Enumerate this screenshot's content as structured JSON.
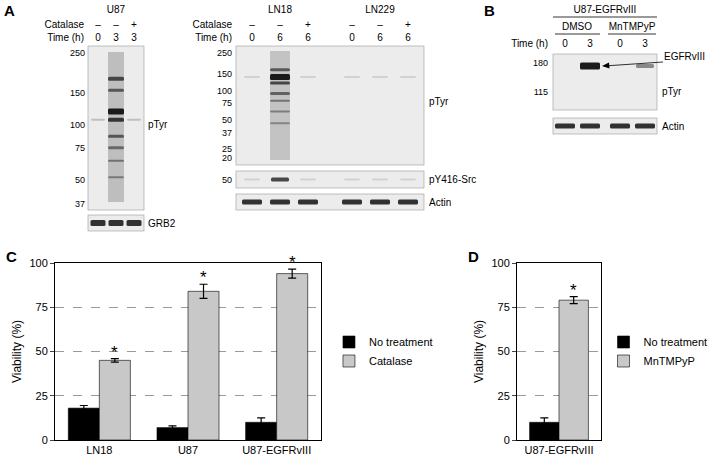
{
  "blots": {
    "panel_a_u87": {
      "panel_label": "A",
      "cell_line": "U87",
      "catalase_label": "Catalase",
      "catalase": [
        "–",
        "–",
        "+"
      ],
      "time_label": "Time (h)",
      "time": [
        "0",
        "3",
        "3"
      ],
      "pTyr": {
        "label": "pTyr",
        "markers": [
          250,
          150,
          100,
          75,
          50,
          37
        ]
      },
      "loading": "GRB2"
    },
    "panel_a_ln": {
      "cell_lines": [
        "LN18",
        "LN229"
      ],
      "catalase_label": "Catalase",
      "catalase": [
        "–",
        "–",
        "+",
        "–",
        "–",
        "+"
      ],
      "time_label": "Time (h)",
      "time": [
        "0",
        "6",
        "6",
        "0",
        "6",
        "6"
      ],
      "pTyr": {
        "label": "pTyr",
        "markers": [
          250,
          150,
          100,
          75,
          50,
          37,
          25,
          20
        ]
      },
      "src": {
        "label": "pY416-Src",
        "markers": [
          50
        ]
      },
      "loading": "Actin"
    },
    "panel_b": {
      "panel_label": "B",
      "cell_line": "U87-EGFRvIII",
      "treatments": [
        "DMSO",
        "MnTMPyP"
      ],
      "time_label": "Time (h)",
      "time": [
        "0",
        "3",
        "0",
        "3"
      ],
      "pTyr": {
        "label": "pTyr",
        "markers": [
          180,
          115
        ]
      },
      "band_label": "EGFRvIII",
      "loading": "Actin"
    }
  },
  "chart_data": [
    {
      "panel_label": "C",
      "type": "bar",
      "categories": [
        "LN18",
        "U87",
        "U87-EGFRvIII"
      ],
      "series": [
        {
          "name": "No treatment",
          "color": "#000000",
          "values": [
            18,
            7,
            10
          ],
          "errors": [
            1.5,
            1,
            2.5
          ]
        },
        {
          "name": "Catalase",
          "color": "#c8c8c8",
          "values": [
            45,
            84,
            94
          ],
          "errors": [
            1,
            4,
            2.5
          ]
        }
      ],
      "y_label": "Viability (%)",
      "ylim": [
        0,
        100
      ],
      "yticks": [
        0,
        25,
        50,
        75,
        100
      ],
      "grid": true,
      "legend": "right",
      "annotations": [
        {
          "category": "LN18",
          "series": "Catalase",
          "text": "*"
        },
        {
          "category": "U87",
          "series": "Catalase",
          "text": "*"
        },
        {
          "category": "U87-EGFRvIII",
          "series": "Catalase",
          "text": "*"
        }
      ]
    },
    {
      "panel_label": "D",
      "type": "bar",
      "categories": [
        "U87-EGFRvIII"
      ],
      "series": [
        {
          "name": "No treatment",
          "color": "#000000",
          "values": [
            10
          ],
          "errors": [
            2.5
          ]
        },
        {
          "name": "MnTMPyP",
          "color": "#c8c8c8",
          "values": [
            79
          ],
          "errors": [
            2
          ]
        }
      ],
      "y_label": "Viability (%)",
      "ylim": [
        0,
        100
      ],
      "yticks": [
        0,
        25,
        50,
        75,
        100
      ],
      "grid": true,
      "legend": "right",
      "annotations": [
        {
          "category": "U87-EGFRvIII",
          "series": "MnTMPyP",
          "text": "*"
        }
      ]
    }
  ]
}
